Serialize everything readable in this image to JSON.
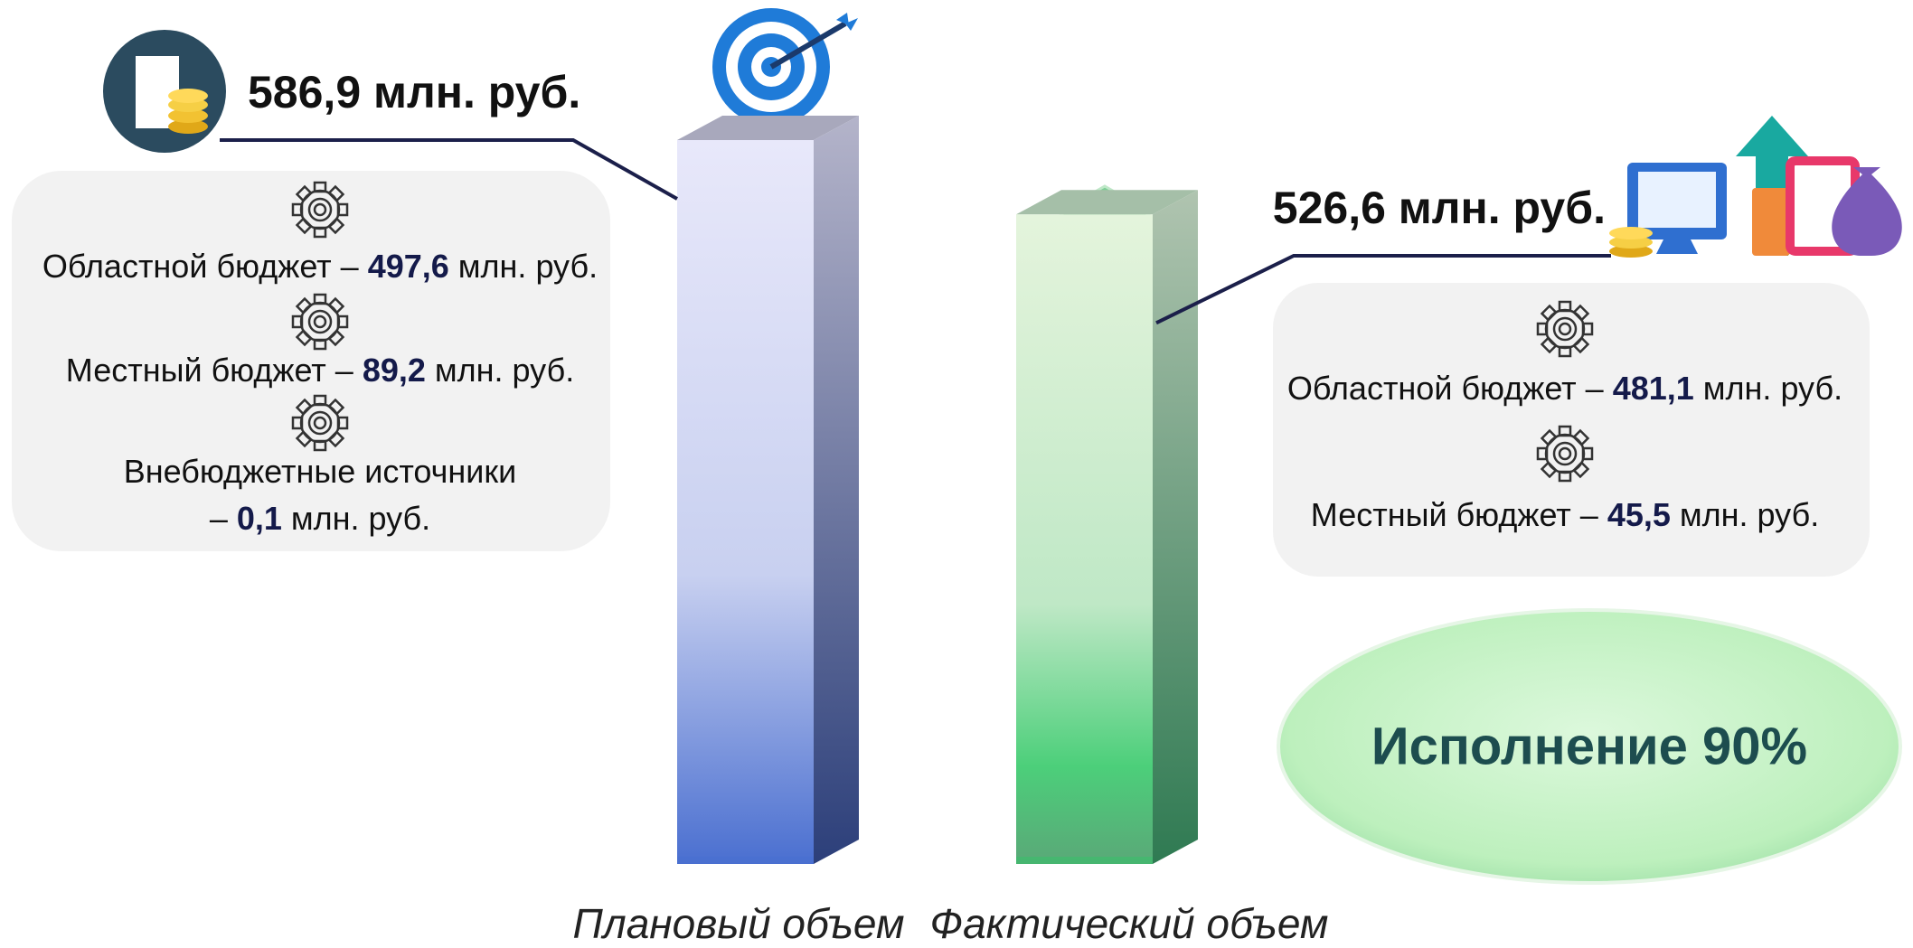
{
  "chart_data": {
    "type": "bar",
    "categories": [
      "Плановый объем",
      "Фактический объем"
    ],
    "values": [
      586.9,
      526.6
    ],
    "value_labels": [
      "586,9 млн. руб.",
      "526,6 млн. руб."
    ],
    "colors": [
      "#4a6fd0",
      "#3bbf6a"
    ]
  },
  "breakdown": [
    {
      "items": [
        {
          "label": "Областной бюджет",
          "dash": "–",
          "value": "497,6",
          "unit": "млн. руб."
        },
        {
          "label": "Местный бюджет",
          "dash": "–",
          "value": "89,2",
          "unit": "млн. руб."
        },
        {
          "label": "Внебюджетные источники",
          "dash": "–",
          "value": "0,1",
          "unit": "млн. руб."
        }
      ]
    },
    {
      "items": [
        {
          "label": "Областной бюджет",
          "dash": "–",
          "value": "481,1",
          "unit": "млн. руб."
        },
        {
          "label": "Местный бюджет",
          "dash": "–",
          "value": "45,5",
          "unit": "млн. руб."
        }
      ]
    }
  ],
  "execution": "Исполнение 90%"
}
